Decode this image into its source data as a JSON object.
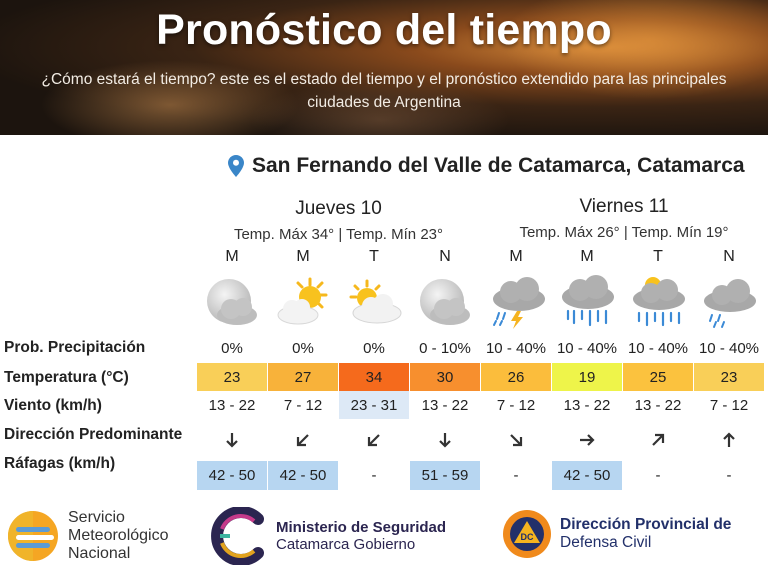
{
  "header": {
    "title": "Pronóstico del tiempo",
    "subtitle": "¿Cómo estará el tiempo? este es el estado del tiempo y el pronóstico extendido para las principales ciudades de Argentina"
  },
  "location": {
    "icon": "map-pin-icon",
    "name": "San Fernando del Valle de Catamarca, Catamarca"
  },
  "days": [
    {
      "name": "Jueves 10",
      "temps": "Temp. Máx 34° | Temp. Mín 23°"
    },
    {
      "name": "Viernes 11",
      "temps": "Temp. Máx 26° | Temp. Mín 19°"
    }
  ],
  "row_labels": {
    "precip": "Prob. Precipitación",
    "temp": "Temperatura (°C)",
    "wind": "Viento (km/h)",
    "direction": "Dirección Predominante",
    "gusts": "Ráfagas (km/h)"
  },
  "periods": [
    {
      "label": "M",
      "icon": "partly-cloudy-night-icon",
      "precip": "0%",
      "temp": "23",
      "temp_color": "#f9cf58",
      "wind": "13 - 22",
      "wind_bg": "",
      "direction": "south",
      "gust": "42 - 50",
      "gust_bg": "#b7d6f1"
    },
    {
      "label": "M",
      "icon": "partly-sunny-icon",
      "precip": "0%",
      "temp": "27",
      "temp_color": "#f8b23a",
      "wind": "7 - 12",
      "wind_bg": "",
      "direction": "southwest",
      "gust": "42 - 50",
      "gust_bg": "#b7d6f1"
    },
    {
      "label": "T",
      "icon": "sun-behind-cloud-icon",
      "precip": "0%",
      "temp": "34",
      "temp_color": "#f56a1c",
      "wind": "23 - 31",
      "wind_bg": "#dde9f6",
      "direction": "southwest",
      "gust": "-",
      "gust_bg": ""
    },
    {
      "label": "N",
      "icon": "partly-cloudy-night-icon",
      "precip": "0 - 10%",
      "temp": "30",
      "temp_color": "#f78f2e",
      "wind": "13 - 22",
      "wind_bg": "",
      "direction": "south",
      "gust": "51 - 59",
      "gust_bg": "#b7d6f1"
    },
    {
      "label": "M",
      "icon": "thunderstorm-icon",
      "precip": "10 - 40%",
      "temp": "26",
      "temp_color": "#fbbd3c",
      "wind": "7 - 12",
      "wind_bg": "",
      "direction": "southeast",
      "gust": "-",
      "gust_bg": ""
    },
    {
      "label": "M",
      "icon": "rain-cloud-icon",
      "precip": "10 - 40%",
      "temp": "19",
      "temp_color": "#eef44a",
      "wind": "13 - 22",
      "wind_bg": "",
      "direction": "east",
      "gust": "42 - 50",
      "gust_bg": "#b7d6f1"
    },
    {
      "label": "T",
      "icon": "sun-rain-cloud-icon",
      "precip": "10 - 40%",
      "temp": "25",
      "temp_color": "#fbc23e",
      "wind": "13 - 22",
      "wind_bg": "",
      "direction": "northeast",
      "gust": "-",
      "gust_bg": ""
    },
    {
      "label": "N",
      "icon": "light-rain-cloud-icon",
      "precip": "10 - 40%",
      "temp": "23",
      "temp_color": "#f9cf58",
      "wind": "7 - 12",
      "wind_bg": "",
      "direction": "north",
      "gust": "-",
      "gust_bg": ""
    }
  ],
  "footer": {
    "smn": {
      "icon": "smn-logo-icon",
      "line1": "Servicio",
      "line2": "Meteorológico",
      "line3": "Nacional"
    },
    "ministerio": {
      "icon": "catamarca-c-logo-icon",
      "line1": "Ministerio de Seguridad",
      "line2": "Catamarca Gobierno"
    },
    "defensa": {
      "icon": "defensa-civil-logo-icon",
      "badge": "DC",
      "line1": "Dirección Provincial de",
      "line2": "Defensa Civil"
    }
  },
  "colors": {
    "temp_scale": [
      "#eef44a",
      "#f9cf58",
      "#fbbd3c",
      "#f8b23a",
      "#f78f2e",
      "#f56a1c"
    ],
    "gust_bg": "#b7d6f1",
    "wind_bg": "#dde9f6"
  }
}
